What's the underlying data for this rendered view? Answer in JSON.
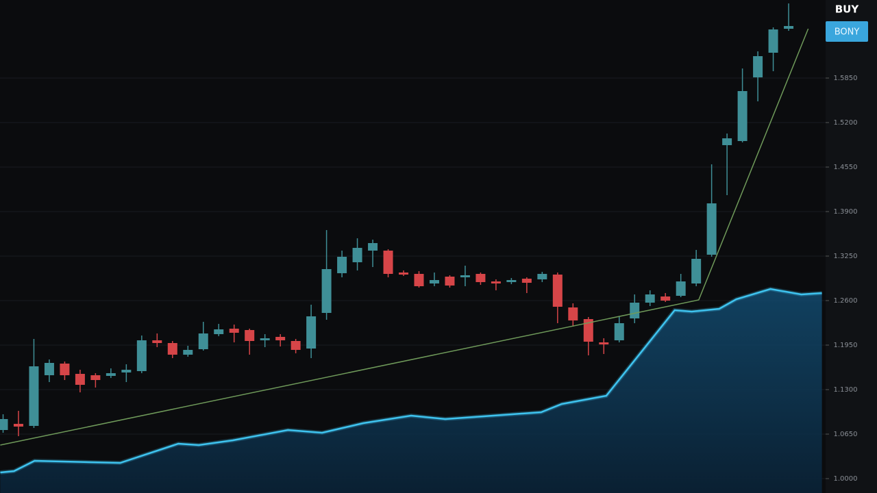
{
  "chart_data": {
    "type": "candlestick",
    "title": "BUY",
    "badge": "BONY",
    "badge_color": "#3aa6dd",
    "up_color": "#3f8f97",
    "down_color": "#d64548",
    "grid": true,
    "xlim": [
      -0.2,
      53.4
    ],
    "ylim": [
      0.979,
      1.699
    ],
    "yticks": [
      {
        "value": 1.0,
        "label": "1.0000"
      },
      {
        "value": 1.065,
        "label": "1.0650"
      },
      {
        "value": 1.13,
        "label": "1.1300"
      },
      {
        "value": 1.195,
        "label": "1.1950"
      },
      {
        "value": 1.26,
        "label": "1.2600"
      },
      {
        "value": 1.325,
        "label": "1.3250"
      },
      {
        "value": 1.39,
        "label": "1.3900"
      },
      {
        "value": 1.455,
        "label": "1.4550"
      },
      {
        "value": 1.52,
        "label": "1.5200"
      },
      {
        "value": 1.585,
        "label": "1.5850"
      }
    ],
    "open": [
      1.071,
      1.08,
      1.077,
      1.151,
      1.168,
      1.153,
      1.151,
      1.15,
      1.155,
      1.157,
      1.202,
      1.198,
      1.181,
      1.189,
      1.211,
      1.219,
      1.217,
      1.202,
      1.207,
      1.201,
      1.19,
      1.242,
      1.3,
      1.316,
      1.333,
      1.333,
      1.301,
      1.299,
      1.285,
      1.295,
      1.294,
      1.299,
      1.288,
      1.287,
      1.292,
      1.291,
      1.298,
      1.25,
      1.233,
      1.199,
      1.202,
      1.234,
      1.257,
      1.266,
      1.267,
      1.285,
      1.327,
      1.487,
      1.493,
      1.586,
      1.622,
      1.657
    ],
    "high": [
      1.094,
      1.099,
      1.204,
      1.174,
      1.171,
      1.159,
      1.154,
      1.161,
      1.167,
      1.209,
      1.212,
      1.201,
      1.194,
      1.229,
      1.226,
      1.225,
      1.219,
      1.211,
      1.211,
      1.204,
      1.254,
      1.363,
      1.333,
      1.351,
      1.349,
      1.335,
      1.304,
      1.303,
      1.301,
      1.297,
      1.311,
      1.301,
      1.291,
      1.293,
      1.294,
      1.302,
      1.301,
      1.256,
      1.236,
      1.205,
      1.237,
      1.269,
      1.275,
      1.271,
      1.299,
      1.334,
      1.459,
      1.504,
      1.599,
      1.624,
      1.659,
      1.694
    ],
    "low": [
      1.067,
      1.062,
      1.074,
      1.141,
      1.144,
      1.126,
      1.133,
      1.147,
      1.141,
      1.154,
      1.192,
      1.176,
      1.178,
      1.187,
      1.208,
      1.199,
      1.181,
      1.192,
      1.193,
      1.183,
      1.176,
      1.232,
      1.294,
      1.304,
      1.309,
      1.294,
      1.296,
      1.279,
      1.281,
      1.279,
      1.281,
      1.283,
      1.275,
      1.284,
      1.271,
      1.287,
      1.227,
      1.222,
      1.18,
      1.182,
      1.199,
      1.227,
      1.252,
      1.258,
      1.265,
      1.281,
      1.324,
      1.414,
      1.491,
      1.551,
      1.595,
      1.654
    ],
    "close": [
      1.087,
      1.076,
      1.164,
      1.169,
      1.151,
      1.137,
      1.144,
      1.154,
      1.159,
      1.202,
      1.198,
      1.181,
      1.188,
      1.212,
      1.218,
      1.213,
      1.201,
      1.205,
      1.202,
      1.188,
      1.237,
      1.306,
      1.324,
      1.337,
      1.344,
      1.299,
      1.298,
      1.281,
      1.29,
      1.282,
      1.297,
      1.287,
      1.285,
      1.29,
      1.286,
      1.299,
      1.251,
      1.231,
      1.2,
      1.196,
      1.227,
      1.257,
      1.269,
      1.26,
      1.288,
      1.321,
      1.402,
      1.497,
      1.566,
      1.617,
      1.656,
      1.661
    ],
    "lines": [
      {
        "color": "#3fc4f0",
        "area": true,
        "x": [
          -0.18,
          0.71,
          2.04,
          7.6,
          11.38,
          12.71,
          14.93,
          18.49,
          20.71,
          23.38,
          26.49,
          28.71,
          31.82,
          34.93,
          36.27,
          39.16,
          43.6,
          44.71,
          46.49,
          47.6,
          49.82,
          51.82,
          53.16
        ],
        "values": [
          1.009,
          1.011,
          1.026,
          1.023,
          1.051,
          1.049,
          1.056,
          1.071,
          1.067,
          1.081,
          1.092,
          1.087,
          1.092,
          1.097,
          1.109,
          1.121,
          1.246,
          1.244,
          1.248,
          1.262,
          1.277,
          1.269,
          1.271
        ]
      },
      {
        "color": "#6f9a5a",
        "area": false,
        "x": [
          -0.18,
          45.16,
          52.27
        ],
        "values": [
          1.049,
          1.261,
          1.657
        ]
      }
    ]
  }
}
